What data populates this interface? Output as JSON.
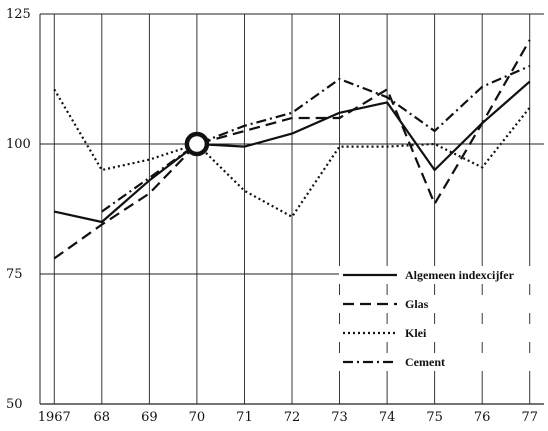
{
  "chart_data": {
    "type": "line",
    "title": "",
    "xlabel": "",
    "ylabel": "",
    "x": [
      1967,
      1968,
      1969,
      1970,
      1971,
      1972,
      1973,
      1974,
      1975,
      1976,
      1977
    ],
    "x_tick_labels": [
      "1967",
      "68",
      "69",
      "70",
      "71",
      "72",
      "73",
      "74",
      "75",
      "76",
      "77"
    ],
    "y_ticks": [
      50,
      75,
      100,
      125
    ],
    "xlim": [
      1966.7,
      1977.3
    ],
    "ylim": [
      50,
      125
    ],
    "grid": true,
    "legend_position": "bottom-right",
    "base_marker": {
      "x": 1970,
      "y": 100
    },
    "series": [
      {
        "name": "Algemeen indexcijfer",
        "style": "solid",
        "x": [
          1967,
          1968,
          1969,
          1970,
          1971,
          1972,
          1973,
          1974,
          1975,
          1976,
          1977
        ],
        "values": [
          87,
          85,
          93,
          100,
          99.5,
          102,
          106,
          108,
          95,
          104,
          112
        ]
      },
      {
        "name": "Glas",
        "style": "dashed",
        "x": [
          1967,
          1968,
          1969,
          1970,
          1971,
          1972,
          1973,
          1974,
          1975,
          1976,
          1977
        ],
        "values": [
          78,
          84.5,
          90.5,
          100,
          102.5,
          105,
          105,
          110.5,
          88.5,
          104,
          120
        ]
      },
      {
        "name": "Klei",
        "style": "dotted",
        "x": [
          1967,
          1968,
          1969,
          1970,
          1971,
          1972,
          1973,
          1974,
          1975,
          1976,
          1977
        ],
        "values": [
          110.5,
          95,
          97,
          100,
          91,
          86,
          99.5,
          99.5,
          100,
          95.5,
          107
        ]
      },
      {
        "name": "Cement",
        "style": "dashdot",
        "x": [
          1968,
          1969,
          1970,
          1971,
          1972,
          1973,
          1974,
          1975,
          1976,
          1977
        ],
        "values": [
          87,
          93.5,
          100,
          103.5,
          106,
          112.5,
          109,
          102.5,
          111,
          115
        ]
      }
    ]
  },
  "colors": {
    "line": "#111111",
    "grid": "#222222",
    "background": "#ffffff"
  }
}
